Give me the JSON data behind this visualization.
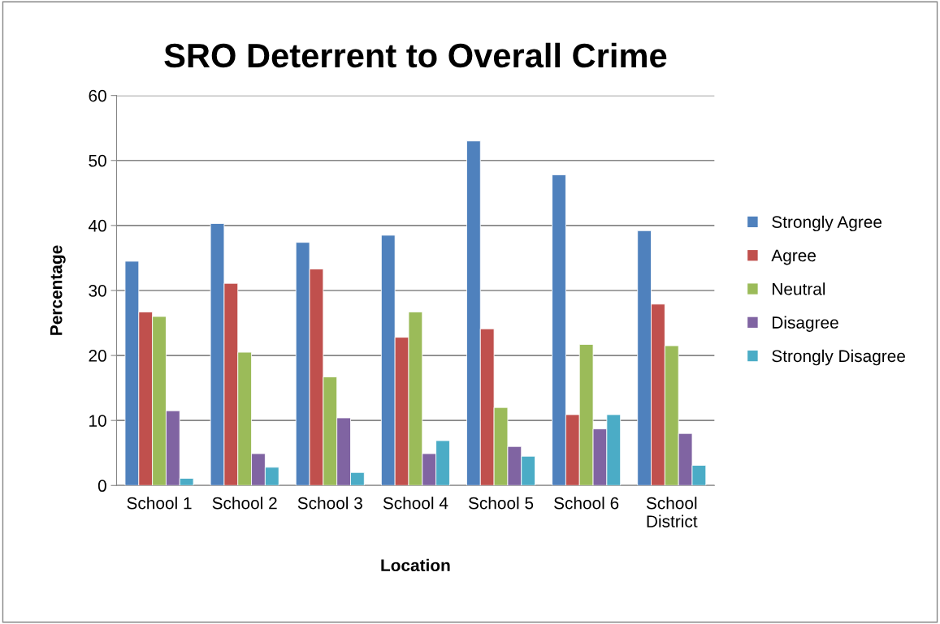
{
  "chart_data": {
    "type": "bar",
    "title": "SRO Deterrent to Overall Crime",
    "xlabel": "Location",
    "ylabel": "Percentage",
    "categories": [
      "School 1",
      "School 2",
      "School 3",
      "School 4",
      "School 5",
      "School 6",
      "School\nDistrict"
    ],
    "series": [
      {
        "name": "Strongly Agree",
        "color": "#4f81bd",
        "values": [
          34.5,
          40.3,
          37.4,
          38.5,
          53.0,
          47.8,
          39.2
        ]
      },
      {
        "name": "Agree",
        "color": "#c0504d",
        "values": [
          26.7,
          31.1,
          33.3,
          22.8,
          24.1,
          10.9,
          27.9
        ]
      },
      {
        "name": "Neutral",
        "color": "#9bbb59",
        "values": [
          26.0,
          20.5,
          16.7,
          26.7,
          12.0,
          21.7,
          21.5
        ]
      },
      {
        "name": "Disagree",
        "color": "#8064a2",
        "values": [
          11.5,
          4.9,
          10.4,
          4.9,
          6.0,
          8.7,
          8.0
        ]
      },
      {
        "name": "Strongly Disagree",
        "color": "#4bacc6",
        "values": [
          1.1,
          2.8,
          2.0,
          6.9,
          4.5,
          10.9,
          3.1
        ]
      }
    ],
    "ylim": [
      0,
      60
    ],
    "yticks": [
      0,
      10,
      20,
      30,
      40,
      50,
      60
    ],
    "grid": "y",
    "legend": "right"
  }
}
